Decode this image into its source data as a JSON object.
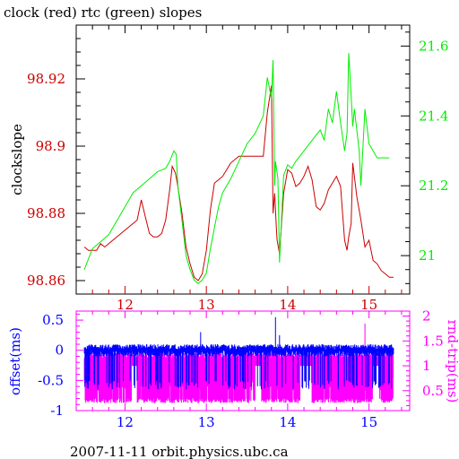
{
  "title": "clock (red) rtc (green) slopes",
  "footer": "2007-11-11 orbit.physics.ubc.ca",
  "colors": {
    "clock": "#cc0000",
    "rtc": "#00ee00",
    "offset": "#0000ff",
    "roundtrip": "#ff00ff",
    "axis_top": "#000000",
    "axis_bottom": "#ff00ff"
  },
  "chart_data": [
    {
      "type": "line",
      "title": "clock (red) rtc (green) slopes",
      "ylabel": "clockslope",
      "xlim": [
        11.4,
        15.5
      ],
      "ylim": [
        98.856,
        98.936
      ],
      "y2lim": [
        20.89,
        21.66
      ],
      "x_ticks": [
        12,
        13,
        14,
        15
      ],
      "x_tick_labels": [
        "12",
        "13",
        "14",
        "15"
      ],
      "y_ticks": [
        98.86,
        98.88,
        98.9,
        98.92
      ],
      "y_tick_labels": [
        "98.86",
        "98.88",
        "98.9",
        "98.92"
      ],
      "y2_ticks": [
        21,
        21.2,
        21.4,
        21.6
      ],
      "y2_tick_labels": [
        "21",
        "21.2",
        "21.4",
        "21.6"
      ],
      "series": [
        {
          "name": "clock",
          "axis": "left",
          "x": [
            11.5,
            11.55,
            11.6,
            11.65,
            11.7,
            11.75,
            11.8,
            11.85,
            11.9,
            11.95,
            12.0,
            12.05,
            12.1,
            12.15,
            12.2,
            12.25,
            12.3,
            12.35,
            12.4,
            12.45,
            12.5,
            12.55,
            12.58,
            12.62,
            12.65,
            12.7,
            12.75,
            12.8,
            12.85,
            12.9,
            12.95,
            13.0,
            13.05,
            13.1,
            13.15,
            13.2,
            13.25,
            13.3,
            13.4,
            13.5,
            13.6,
            13.7,
            13.75,
            13.8,
            13.82,
            13.84,
            13.86,
            13.87,
            13.9,
            13.95,
            14.0,
            14.05,
            14.1,
            14.15,
            14.2,
            14.25,
            14.3,
            14.35,
            14.4,
            14.45,
            14.5,
            14.55,
            14.6,
            14.65,
            14.7,
            14.73,
            14.75,
            14.78,
            14.8,
            14.85,
            14.9,
            14.95,
            15.0,
            15.05,
            15.1,
            15.15,
            15.2,
            15.25,
            15.3
          ],
          "y": [
            98.87,
            98.869,
            98.869,
            98.869,
            98.871,
            98.87,
            98.871,
            98.872,
            98.873,
            98.874,
            98.875,
            98.876,
            98.877,
            98.878,
            98.884,
            98.879,
            98.874,
            98.873,
            98.873,
            98.874,
            98.878,
            98.887,
            98.894,
            98.892,
            98.888,
            98.88,
            98.87,
            98.865,
            98.861,
            98.86,
            98.862,
            98.869,
            98.881,
            98.889,
            98.89,
            98.891,
            98.893,
            98.895,
            98.897,
            98.897,
            98.897,
            98.897,
            98.91,
            98.918,
            98.88,
            98.886,
            98.876,
            98.872,
            98.868,
            98.886,
            98.893,
            98.892,
            98.888,
            98.889,
            98.891,
            98.894,
            98.89,
            98.882,
            98.881,
            98.883,
            98.887,
            98.889,
            98.891,
            98.888,
            98.872,
            98.869,
            98.873,
            98.877,
            98.895,
            98.885,
            98.878,
            98.87,
            98.872,
            98.866,
            98.865,
            98.863,
            98.862,
            98.861,
            98.861
          ]
        },
        {
          "name": "rtc",
          "axis": "right",
          "x": [
            11.5,
            11.55,
            11.6,
            11.7,
            11.8,
            11.9,
            12.0,
            12.05,
            12.1,
            12.2,
            12.3,
            12.4,
            12.5,
            12.55,
            12.6,
            12.63,
            12.65,
            12.7,
            12.75,
            12.8,
            12.85,
            12.9,
            12.95,
            13.0,
            13.05,
            13.1,
            13.15,
            13.2,
            13.3,
            13.4,
            13.5,
            13.6,
            13.7,
            13.75,
            13.8,
            13.82,
            13.84,
            13.85,
            13.88,
            13.9,
            13.95,
            14.0,
            14.05,
            14.1,
            14.2,
            14.3,
            14.4,
            14.45,
            14.5,
            14.55,
            14.6,
            14.65,
            14.7,
            14.73,
            14.75,
            14.77,
            14.8,
            14.82,
            14.85,
            14.88,
            14.9,
            14.95,
            15.0,
            15.05,
            15.1,
            15.15,
            15.2,
            15.25
          ],
          "y": [
            20.96,
            20.99,
            21.02,
            21.04,
            21.06,
            21.1,
            21.14,
            21.16,
            21.18,
            21.2,
            21.22,
            21.24,
            21.25,
            21.27,
            21.3,
            21.29,
            21.2,
            21.1,
            21.0,
            20.96,
            20.93,
            20.92,
            20.93,
            20.95,
            21.02,
            21.08,
            21.14,
            21.18,
            21.22,
            21.27,
            21.32,
            21.35,
            21.4,
            21.51,
            21.45,
            21.56,
            21.2,
            21.27,
            21.22,
            20.98,
            21.23,
            21.26,
            21.25,
            21.27,
            21.3,
            21.33,
            21.36,
            21.33,
            21.42,
            21.38,
            21.47,
            21.38,
            21.3,
            21.35,
            21.58,
            21.5,
            21.37,
            21.42,
            21.36,
            21.3,
            21.2,
            21.42,
            21.32,
            21.3,
            21.28,
            21.28,
            21.28,
            21.28
          ]
        }
      ]
    },
    {
      "type": "line",
      "ylabel": "offset(ms)",
      "y2label": "rnd-trip(ms)",
      "xlim": [
        11.4,
        15.5
      ],
      "ylim": [
        -1.0,
        0.65
      ],
      "y2lim": [
        0.1,
        2.1
      ],
      "x_ticks": [
        12,
        13,
        14,
        15
      ],
      "x_tick_labels": [
        "12",
        "13",
        "14",
        "15"
      ],
      "y_ticks": [
        -1,
        -0.5,
        0,
        0.5
      ],
      "y_tick_labels": [
        "-1",
        "-0.5",
        "0",
        "0.5"
      ],
      "y2_ticks": [
        0.5,
        1,
        1.5,
        2
      ],
      "y2_tick_labels": [
        "0.5",
        "1",
        "1.5",
        "2"
      ],
      "series": [
        {
          "name": "offset",
          "axis": "left",
          "range": [
            11.5,
            15.3
          ],
          "baseline": 0.0,
          "low": -0.5,
          "spikes": [
            [
              12.93,
              0.3
            ],
            [
              13.85,
              0.55
            ],
            [
              13.9,
              0.25
            ]
          ]
        },
        {
          "name": "rnd-trip",
          "axis": "right",
          "range": [
            11.5,
            15.3
          ],
          "baseline": 1.2,
          "low": 0.25,
          "gaps": [
            [
              12.08,
              12.15
            ],
            [
              13.6,
              13.68
            ],
            [
              14.15,
              14.3
            ],
            [
              15.05,
              15.12
            ]
          ],
          "spikes": [
            [
              14.95,
              1.85
            ]
          ]
        }
      ]
    }
  ]
}
